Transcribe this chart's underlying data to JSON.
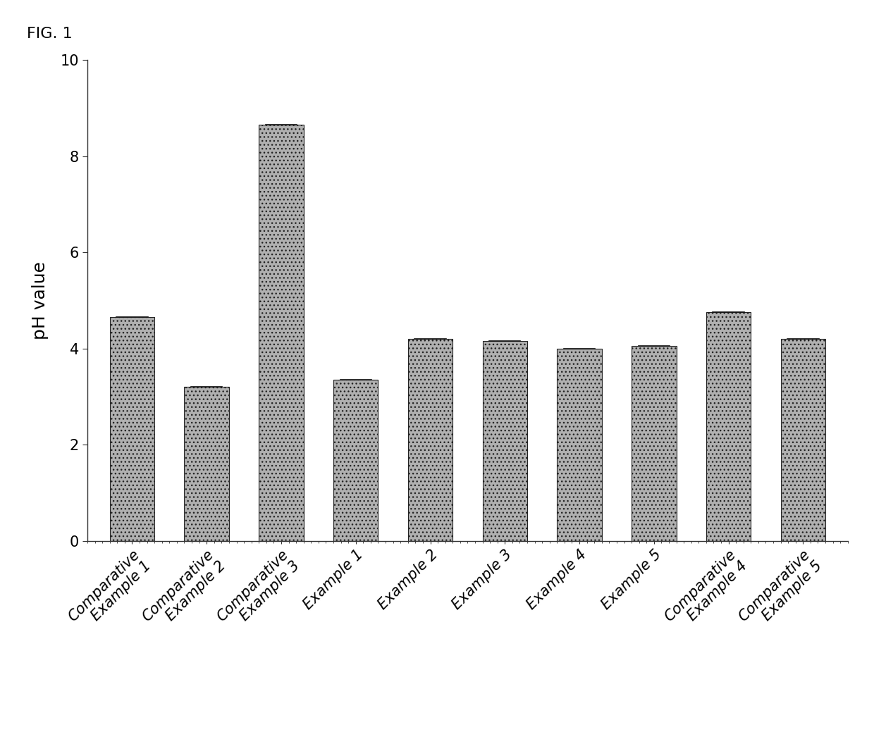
{
  "categories": [
    "Comparative\nExample 1",
    "Comparative\nExample 2",
    "Comparative\nExample 3",
    "Example 1",
    "Example 2",
    "Example 3",
    "Example 4",
    "Example 5",
    "Comparative\nExample 4",
    "Comparative\nExample 5"
  ],
  "values": [
    4.65,
    3.2,
    8.65,
    3.35,
    4.2,
    4.15,
    4.0,
    4.05,
    4.75,
    4.2
  ],
  "bar_color": "#b0b0b0",
  "bar_edge_color": "#222222",
  "bar_hatch": "...",
  "ylabel": "pH value",
  "ylim": [
    0,
    10
  ],
  "yticks": [
    0,
    2,
    4,
    6,
    8,
    10
  ],
  "title": "FIG. 1",
  "ylabel_fontsize": 18,
  "tick_fontsize": 15,
  "xlabel_fontsize": 15,
  "title_fontsize": 16,
  "background_color": "#ffffff",
  "fig_width": 12.4,
  "fig_height": 10.66,
  "dpi": 100
}
